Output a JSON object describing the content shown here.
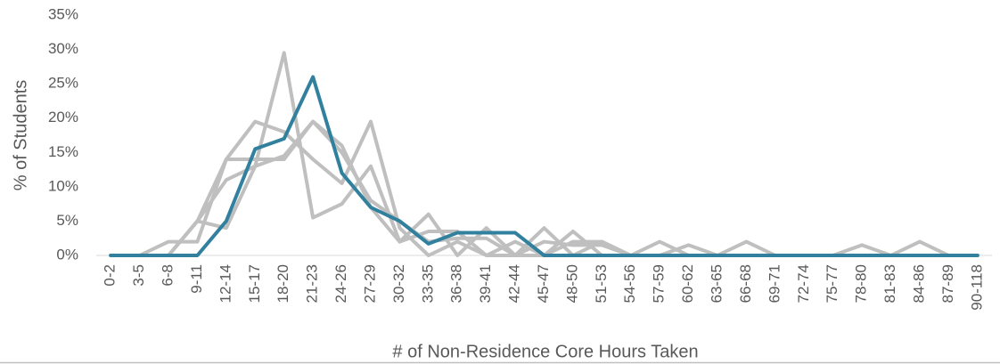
{
  "chart_data": {
    "type": "line",
    "xlabel": "# of Non-Residence Core Hours Taken",
    "ylabel": "% of Students",
    "categories": [
      "0-2",
      "3-5",
      "6-8",
      "9-11",
      "12-14",
      "15-17",
      "18-20",
      "21-23",
      "24-26",
      "27-29",
      "30-32",
      "33-35",
      "36-38",
      "39-41",
      "42-44",
      "45-47",
      "48-50",
      "51-53",
      "54-56",
      "57-59",
      "60-62",
      "63-65",
      "66-68",
      "69-71",
      "72-74",
      "75-77",
      "78-80",
      "81-83",
      "84-86",
      "87-89",
      "90-118"
    ],
    "ylim": [
      0,
      35
    ],
    "yticks": [
      {
        "value": 0,
        "label": "0%"
      },
      {
        "value": 5,
        "label": "5%"
      },
      {
        "value": 10,
        "label": "10%"
      },
      {
        "value": 15,
        "label": "15%"
      },
      {
        "value": 20,
        "label": "20%"
      },
      {
        "value": 25,
        "label": "25%"
      },
      {
        "value": 30,
        "label": "30%"
      },
      {
        "value": 35,
        "label": "35%"
      }
    ],
    "series": [
      {
        "color": "#bfbfbf",
        "values": [
          0,
          0,
          0,
          5,
          11,
          13,
          29.5,
          5.5,
          7.5,
          13,
          2,
          6,
          0,
          4,
          0,
          4,
          0,
          2,
          0,
          2,
          0,
          0,
          2,
          0,
          0,
          0,
          1.5,
          0,
          2,
          0,
          0
        ]
      },
      {
        "color": "#bfbfbf",
        "values": [
          0,
          0,
          2,
          2,
          14,
          14,
          14,
          19.5,
          16,
          7,
          2,
          3.5,
          3.5,
          0,
          2,
          0,
          3.5,
          0,
          0,
          0,
          1.5,
          0,
          0,
          0,
          0,
          0,
          0,
          0,
          0,
          0,
          0
        ]
      },
      {
        "color": "#bfbfbf",
        "values": [
          0,
          0,
          0,
          5,
          14,
          19.5,
          18,
          14,
          10.5,
          19.5,
          4,
          0,
          2,
          0,
          0,
          2,
          1.5,
          1.5,
          0,
          0,
          0,
          0,
          0,
          0,
          0,
          0,
          0,
          0,
          0,
          0,
          0
        ]
      },
      {
        "color": "#bfbfbf",
        "values": [
          0,
          0,
          0,
          5,
          4,
          13,
          14.5,
          19.5,
          15,
          8,
          5,
          2,
          2.5,
          2.5,
          0,
          0,
          2,
          2,
          0,
          0,
          0,
          0,
          0,
          0,
          0,
          0,
          0,
          0,
          0,
          0,
          0
        ]
      },
      {
        "color": "#31809e",
        "values": [
          0,
          0,
          0,
          0,
          5,
          15.5,
          17,
          26,
          12,
          7,
          5,
          1.7,
          3.3,
          3.3,
          3.3,
          0,
          0,
          0,
          0,
          0,
          0,
          0,
          0,
          0,
          0,
          0,
          0,
          0,
          0,
          0,
          0
        ]
      }
    ]
  }
}
